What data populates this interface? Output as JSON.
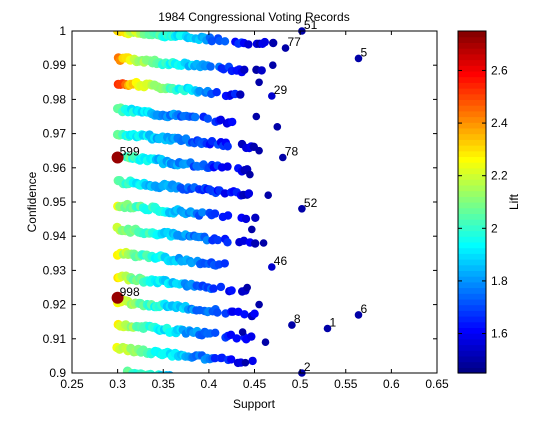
{
  "chart_data": {
    "type": "scatter",
    "title": "1984 Congressional Voting Records",
    "xlabel": "Support",
    "ylabel": "Confidence",
    "colorbar_label": "Lift",
    "xlim": [
      0.25,
      0.65
    ],
    "ylim": [
      0.9,
      1.0
    ],
    "xticks": [
      "0.25",
      "0.3",
      "0.35",
      "0.4",
      "0.45",
      "0.5",
      "0.55",
      "0.6",
      "0.65"
    ],
    "yticks": [
      "0.9",
      "0.91",
      "0.92",
      "0.93",
      "0.94",
      "0.95",
      "0.96",
      "0.97",
      "0.98",
      "0.99",
      "1"
    ],
    "color_range": [
      1.45,
      2.75
    ],
    "colorbar_ticks": [
      "1.6",
      "1.8",
      "2",
      "2.2",
      "2.4",
      "2.6"
    ],
    "grid": false,
    "colormap": "jet",
    "labeled_points": [
      {
        "label": "51",
        "x": 0.502,
        "y": 1.0,
        "lift": 1.5
      },
      {
        "label": "77",
        "x": 0.484,
        "y": 0.995,
        "lift": 1.5
      },
      {
        "label": "5",
        "x": 0.564,
        "y": 0.992,
        "lift": 1.5
      },
      {
        "label": "29",
        "x": 0.469,
        "y": 0.981,
        "lift": 1.55
      },
      {
        "label": "78",
        "x": 0.481,
        "y": 0.963,
        "lift": 1.5
      },
      {
        "label": "599",
        "x": 0.3,
        "y": 0.963,
        "lift": 2.72
      },
      {
        "label": "52",
        "x": 0.502,
        "y": 0.948,
        "lift": 1.5
      },
      {
        "label": "46",
        "x": 0.469,
        "y": 0.931,
        "lift": 1.55
      },
      {
        "label": "998",
        "x": 0.3,
        "y": 0.922,
        "lift": 2.72
      },
      {
        "label": "6",
        "x": 0.564,
        "y": 0.917,
        "lift": 1.5
      },
      {
        "label": "8",
        "x": 0.491,
        "y": 0.914,
        "lift": 1.5
      },
      {
        "label": "1",
        "x": 0.53,
        "y": 0.913,
        "lift": 1.5
      },
      {
        "label": "2",
        "x": 0.502,
        "y": 0.9,
        "lift": 1.5
      }
    ],
    "bands": [
      {
        "y": 1.0,
        "xmin": 0.3,
        "xmax": 0.47,
        "lift_start": 2.35,
        "lift_end": 1.5
      },
      {
        "y": 0.992,
        "xmin": 0.3,
        "xmax": 0.46,
        "lift_start": 2.4,
        "lift_end": 1.5
      },
      {
        "y": 0.985,
        "xmin": 0.3,
        "xmax": 0.44,
        "lift_start": 2.55,
        "lift_end": 1.55
      },
      {
        "y": 0.977,
        "xmin": 0.3,
        "xmax": 0.44,
        "lift_start": 2.05,
        "lift_end": 1.55
      },
      {
        "y": 0.97,
        "xmin": 0.3,
        "xmax": 0.45,
        "lift_start": 2.05,
        "lift_end": 1.55
      },
      {
        "y": 0.963,
        "xmin": 0.31,
        "xmax": 0.45,
        "lift_start": 2.05,
        "lift_end": 1.55
      },
      {
        "y": 0.956,
        "xmin": 0.3,
        "xmax": 0.45,
        "lift_start": 2.05,
        "lift_end": 1.55
      },
      {
        "y": 0.949,
        "xmin": 0.3,
        "xmax": 0.45,
        "lift_start": 2.2,
        "lift_end": 1.55
      },
      {
        "y": 0.942,
        "xmin": 0.3,
        "xmax": 0.45,
        "lift_start": 2.2,
        "lift_end": 1.55
      },
      {
        "y": 0.935,
        "xmin": 0.3,
        "xmax": 0.44,
        "lift_start": 2.25,
        "lift_end": 1.55
      },
      {
        "y": 0.928,
        "xmin": 0.3,
        "xmax": 0.44,
        "lift_start": 2.25,
        "lift_end": 1.55
      },
      {
        "y": 0.921,
        "xmin": 0.3,
        "xmax": 0.45,
        "lift_start": 2.25,
        "lift_end": 1.55
      },
      {
        "y": 0.914,
        "xmin": 0.3,
        "xmax": 0.45,
        "lift_start": 2.25,
        "lift_end": 1.55
      },
      {
        "y": 0.907,
        "xmin": 0.3,
        "xmax": 0.45,
        "lift_start": 2.25,
        "lift_end": 1.55
      },
      {
        "y": 0.9,
        "xmin": 0.31,
        "xmax": 0.45,
        "lift_start": 2.1,
        "lift_end": 1.6
      }
    ]
  }
}
